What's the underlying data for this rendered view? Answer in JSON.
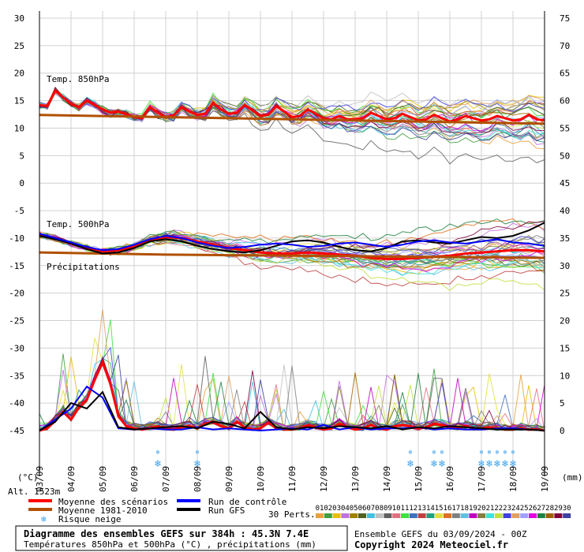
{
  "chart_data": {
    "type": "line",
    "title": "Diagramme des ensembles GEFS sur 384h : 45.3N 7.4E",
    "subtitle": "Températures 850hPa et 500hPa (°C) , précipitations (mm)",
    "run_info": "Ensemble GEFS du 03/09/2024 - 00Z",
    "copyright": "Copyright 2024 Meteociel.fr",
    "altitude": "Alt. 1523m",
    "left_unit": "(°C)",
    "right_unit": "(mm)",
    "left_axis": {
      "min": -45,
      "max": 30,
      "ticks": [
        "30",
        "25",
        "20",
        "15",
        "10",
        "5",
        "0",
        "-5",
        "-10",
        "-15",
        "-20",
        "-25",
        "-30",
        "-35",
        "-40",
        "-45"
      ]
    },
    "right_axis_upper": [
      "75",
      "70",
      "65",
      "60",
      "55",
      "50",
      "45"
    ],
    "right_axis_lower": [
      "40",
      "35",
      "30",
      "25",
      "20",
      "15",
      "10",
      "5",
      "0"
    ],
    "dates": [
      "03/09",
      "04/09",
      "05/09",
      "06/09",
      "07/09",
      "08/09",
      "09/09",
      "10/09",
      "11/09",
      "12/09",
      "13/09",
      "14/09",
      "15/09",
      "16/09",
      "17/09",
      "18/09",
      "19/09"
    ],
    "panels": [
      "Temp. 850hPa",
      "Temp. 500hPa",
      "Précipitations"
    ],
    "legend": {
      "mean": "Moyenne des scénarios",
      "climate": "Moyenne 1981-2010",
      "snow": "Risque neige",
      "control": "Run de contrôle",
      "gfs": "Run GFS",
      "perts_label": "30 Perts.",
      "perts": [
        "01",
        "02",
        "03",
        "04",
        "05",
        "06",
        "07",
        "08",
        "09",
        "10",
        "11",
        "12",
        "13",
        "14",
        "15",
        "16",
        "17",
        "18",
        "19",
        "20",
        "21",
        "22",
        "23",
        "24",
        "25",
        "26",
        "27",
        "28",
        "29",
        "30"
      ]
    },
    "pert_colors": [
      "#e8a040",
      "#40a040",
      "#e8c000",
      "#c070e0",
      "#a08000",
      "#506020",
      "#40c0e0",
      "#c0c0c0",
      "#606060",
      "#e07080",
      "#40e040",
      "#4070c0",
      "#c04040",
      "#20a080",
      "#e0e040",
      "#e07020",
      "#808080",
      "#60c0e0",
      "#c000c0",
      "#808040",
      "#40e0e0",
      "#c0e040",
      "#4040e0",
      "#e0a060",
      "#a0a0ff",
      "#e000e0",
      "#208040",
      "#a06000",
      "#800040",
      "#4040a0"
    ],
    "series": [
      {
        "name": "Moyenne des scénarios",
        "panel": "850",
        "color": "#ff0000",
        "x": [
          0,
          6,
          12,
          18,
          24,
          30,
          36,
          42,
          48,
          54,
          60,
          66,
          72,
          78,
          84,
          90,
          96,
          102,
          108,
          114,
          120,
          126,
          132,
          138,
          144,
          150,
          156,
          162,
          168,
          174,
          180,
          186,
          192,
          198,
          204,
          210,
          216,
          222,
          228,
          234,
          240,
          246,
          252,
          258,
          264,
          270,
          276,
          282,
          288,
          294,
          300,
          306,
          312,
          318,
          324,
          330,
          336,
          342,
          348,
          354,
          360,
          366,
          372,
          378,
          384
        ],
        "values": [
          14.2,
          14,
          16.8,
          15.6,
          14.4,
          13.8,
          15,
          14.2,
          13.4,
          12.8,
          13,
          12.5,
          12,
          11.8,
          13.8,
          12.8,
          12,
          12.3,
          13.8,
          13,
          12.4,
          12.6,
          14.6,
          13.4,
          12.6,
          12.8,
          14.2,
          13.2,
          12.2,
          12.4,
          14,
          13,
          12,
          12.2,
          13.4,
          12.6,
          11.8,
          11.6,
          12.2,
          11.6,
          11.6,
          11.8,
          12.8,
          12.2,
          11.6,
          11.8,
          12.6,
          12,
          11.4,
          11.6,
          12.4,
          11.8,
          11.2,
          11.6,
          12.2,
          11.8,
          11.4,
          11.6,
          12.2,
          11.8,
          11.4,
          11.6,
          12.4,
          11.6,
          11.4
        ]
      },
      {
        "name": "Moyenne 1981-2010",
        "panel": "850",
        "color": "#b05000",
        "x": [
          0,
          48,
          96,
          144,
          192,
          240,
          288,
          336,
          384
        ],
        "values": [
          12.4,
          12.2,
          12,
          11.8,
          11.6,
          11.4,
          11.2,
          11,
          10.8
        ]
      },
      {
        "name": "Moyenne des scénarios",
        "panel": "500",
        "color": "#ff0000",
        "x": [
          0,
          12,
          24,
          36,
          48,
          60,
          72,
          84,
          96,
          108,
          120,
          132,
          144,
          156,
          168,
          180,
          192,
          204,
          216,
          228,
          240,
          252,
          264,
          276,
          288,
          300,
          312,
          324,
          336,
          348,
          360,
          372,
          384
        ],
        "values": [
          -9.4,
          -10,
          -11,
          -11.8,
          -12.4,
          -12.2,
          -11.6,
          -10.4,
          -9.8,
          -10,
          -10.6,
          -11.2,
          -11.8,
          -12.2,
          -12.6,
          -12.8,
          -12.8,
          -12.6,
          -12.8,
          -13,
          -13.2,
          -13.6,
          -13.8,
          -13.8,
          -13.6,
          -13.4,
          -13.2,
          -12.8,
          -12.6,
          -12.4,
          -12.2,
          -12.2,
          -12.4
        ]
      },
      {
        "name": "Moyenne 1981-2010",
        "panel": "500",
        "color": "#b05000",
        "x": [
          0,
          48,
          96,
          144,
          192,
          240,
          288,
          336,
          384
        ],
        "values": [
          -12.6,
          -12.8,
          -13,
          -13.1,
          -13.2,
          -13.3,
          -13.4,
          -13.5,
          -13.6
        ]
      },
      {
        "name": "Run GFS",
        "panel": "500",
        "color": "#000000",
        "x": [
          0,
          12,
          24,
          36,
          48,
          60,
          72,
          84,
          96,
          108,
          120,
          132,
          144,
          156,
          168,
          180,
          192,
          204,
          216,
          228,
          240,
          252,
          264,
          276,
          288,
          300,
          312,
          324,
          336,
          348,
          360,
          372,
          384
        ],
        "values": [
          -9.6,
          -10.2,
          -11,
          -12,
          -12.8,
          -12.6,
          -11.8,
          -10.6,
          -10.2,
          -10.6,
          -11.4,
          -12,
          -12.4,
          -12.6,
          -12.2,
          -11.4,
          -10.6,
          -10.4,
          -10.8,
          -11.6,
          -12.2,
          -12.4,
          -11.8,
          -10.6,
          -10.4,
          -10.8,
          -11,
          -10.4,
          -9.8,
          -10,
          -9.6,
          -8.6,
          -7.2
        ]
      },
      {
        "name": "Run de contrôle",
        "panel": "500",
        "color": "#0000ff",
        "x": [
          0,
          12,
          24,
          36,
          48,
          60,
          72,
          84,
          96,
          108,
          120,
          132,
          144,
          156,
          168,
          180,
          192,
          204,
          216,
          228,
          240,
          252,
          264,
          276,
          288,
          300,
          312,
          324,
          336,
          348,
          360,
          372,
          384
        ],
        "values": [
          -9.2,
          -10,
          -10.8,
          -11.6,
          -12.2,
          -12,
          -11.2,
          -10.2,
          -9.6,
          -10,
          -10.8,
          -11.4,
          -11.8,
          -11.6,
          -11.2,
          -11,
          -11.2,
          -11.6,
          -11.4,
          -11,
          -10.8,
          -11.2,
          -11.6,
          -11.2,
          -10.6,
          -10.4,
          -10.8,
          -11,
          -10.6,
          -10.2,
          -10.8,
          -11,
          -11.4
        ]
      },
      {
        "name": "Moyenne des scénarios",
        "panel": "precip",
        "color": "#ff0000",
        "x": [
          0,
          6,
          12,
          18,
          24,
          30,
          36,
          42,
          48,
          54,
          60,
          66,
          72,
          78,
          84,
          90,
          96,
          102,
          108,
          114,
          120,
          126,
          132,
          138,
          144,
          150,
          156,
          162,
          168,
          174,
          180,
          186,
          192,
          198,
          204,
          210,
          216,
          222,
          228,
          234,
          240,
          246,
          252,
          258,
          264,
          270,
          276,
          282,
          288,
          294,
          300,
          306,
          312,
          318,
          324,
          330,
          336,
          342,
          348,
          354,
          360,
          366,
          372,
          378,
          384
        ],
        "values": [
          0,
          0.4,
          1.8,
          3.4,
          2,
          4.2,
          5.6,
          9.2,
          12.4,
          8.4,
          2.6,
          0.8,
          0.4,
          0.2,
          0.4,
          0.8,
          0.4,
          0.2,
          0.6,
          0.8,
          0.4,
          1.2,
          1.6,
          0.8,
          0.4,
          1.6,
          0.6,
          0.2,
          0.4,
          1.4,
          0.6,
          0.2,
          0.2,
          0.4,
          1,
          0.6,
          0.2,
          0.4,
          1.2,
          0.6,
          0.2,
          0.4,
          1,
          0.4,
          0.2,
          0.8,
          1,
          0.8,
          0.4,
          0.6,
          1.2,
          1,
          0.6,
          0.4,
          0.8,
          0.4,
          0.4,
          0.6,
          0.4,
          0.2,
          0.2,
          0.4,
          0.2,
          0.2,
          0
        ]
      },
      {
        "name": "Run de contrôle",
        "panel": "precip",
        "color": "#0000ff",
        "x": [
          0,
          12,
          24,
          36,
          48,
          60,
          72,
          84,
          96,
          108,
          120,
          132,
          144,
          156,
          168,
          180,
          192,
          204,
          216,
          228,
          240,
          252,
          264,
          276,
          288,
          300,
          312,
          324,
          336,
          348,
          360,
          372,
          384
        ],
        "values": [
          0,
          2,
          4,
          8,
          6,
          0.4,
          0.2,
          0.4,
          0.2,
          0.2,
          0.6,
          0.2,
          0.4,
          0.2,
          0,
          0.2,
          0.4,
          0.2,
          1,
          0.2,
          0.6,
          0.2,
          0.4,
          0.4,
          0.6,
          0.2,
          0.4,
          0.2,
          0.2,
          0.4,
          0.4,
          0.2,
          0
        ]
      },
      {
        "name": "Run GFS",
        "panel": "precip",
        "color": "#000000",
        "x": [
          0,
          12,
          24,
          36,
          48,
          60,
          72,
          84,
          96,
          108,
          120,
          132,
          144,
          156,
          168,
          180,
          192,
          204,
          216,
          228,
          240,
          252,
          264,
          276,
          288,
          300,
          312,
          324,
          336,
          348,
          360,
          372,
          384
        ],
        "values": [
          0,
          1.6,
          5,
          4,
          7,
          0.6,
          0.2,
          0.4,
          0.6,
          0.8,
          0.4,
          1.6,
          1.2,
          0.4,
          3.4,
          0.6,
          0.2,
          0.6,
          0.4,
          0.8,
          0.6,
          0.4,
          0.8,
          0.2,
          0.6,
          0.4,
          0.8,
          0.6,
          0.4,
          0.2,
          0.2,
          0.2,
          0
        ]
      }
    ],
    "snow_markers_hours": [
      90,
      120,
      282,
      300,
      306,
      336,
      342,
      348,
      354,
      360
    ]
  }
}
